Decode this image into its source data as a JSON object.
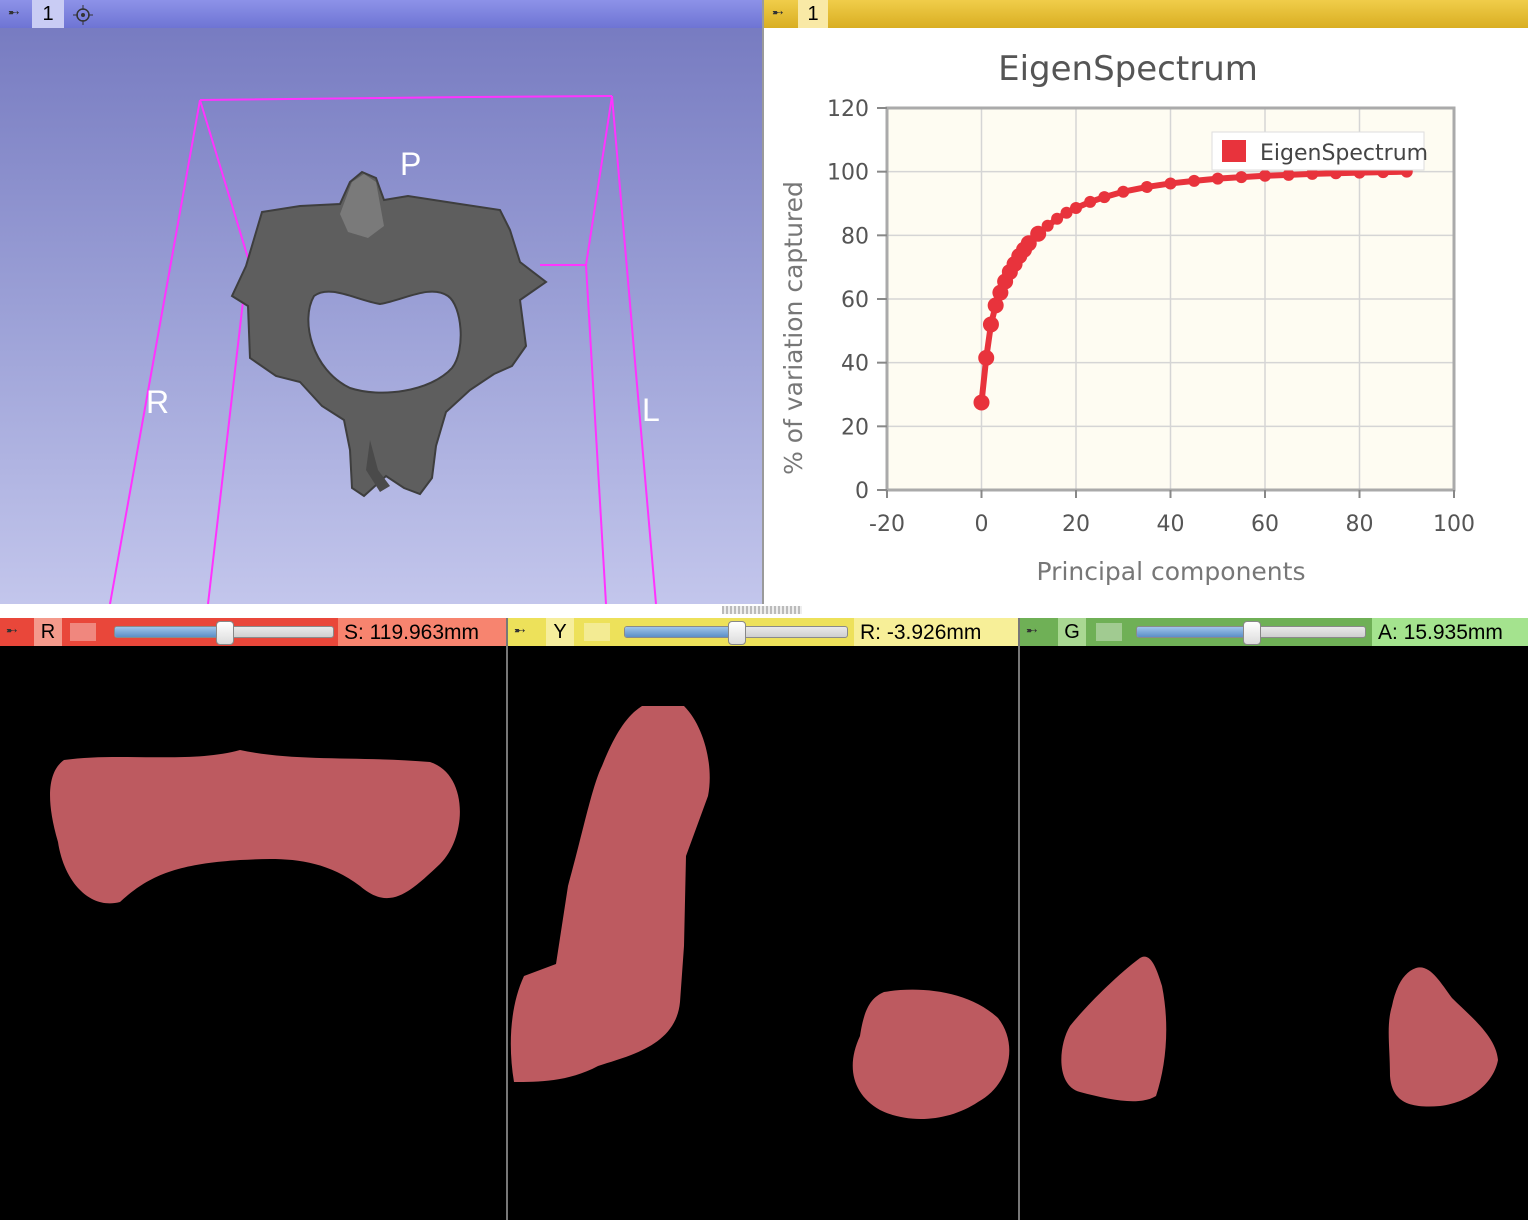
{
  "view3d": {
    "number": "1",
    "orientation_labels": {
      "posterior": "P",
      "right": "R",
      "left": "L"
    },
    "colors": {
      "bar": "#7a80dc",
      "box": "#ff33ff",
      "model": "#5a5a5a"
    },
    "icons": [
      "pin-icon",
      "crosshair-icon"
    ]
  },
  "chartview": {
    "number": "1",
    "colors": {
      "bar": "#e8c33c",
      "series": "#e8333c",
      "plot_bg": "#fefcf2"
    }
  },
  "chart_data": {
    "type": "line",
    "title": "EigenSpectrum",
    "xlabel": "Principal components",
    "ylabel": "% of variation captured",
    "xlim": [
      -20,
      100
    ],
    "ylim": [
      0,
      120
    ],
    "xticks": [
      "-20",
      "0",
      "20",
      "40",
      "60",
      "80",
      "100"
    ],
    "yticks": [
      "0",
      "20",
      "40",
      "60",
      "80",
      "100",
      "120"
    ],
    "grid": true,
    "legend_position": "top-right",
    "series": [
      {
        "name": "EigenSpectrum",
        "x": [
          0,
          1,
          2,
          3,
          4,
          5,
          6,
          7,
          8,
          9,
          10,
          12,
          14,
          16,
          18,
          20,
          23,
          26,
          30,
          35,
          40,
          45,
          50,
          55,
          60,
          65,
          70,
          75,
          80,
          85,
          90
        ],
        "y": [
          27.5,
          41.5,
          52,
          58,
          62,
          65.5,
          68.5,
          71,
          73.5,
          75.5,
          77.5,
          80.5,
          83,
          85.2,
          87.1,
          88.6,
          90.5,
          92,
          93.7,
          95.2,
          96.3,
          97.1,
          97.8,
          98.3,
          98.7,
          99,
          99.3,
          99.5,
          99.7,
          99.85,
          100
        ]
      }
    ]
  },
  "slices": [
    {
      "id": "red",
      "letter": "R",
      "offset": "S: 119.963mm",
      "slider_fraction": 0.5,
      "color": "#e9473a",
      "segment": "#bd5a60"
    },
    {
      "id": "yellow",
      "letter": "Y",
      "offset": "R: -3.926mm",
      "slider_fraction": 0.5,
      "color": "#ede15a",
      "segment": "#bd5a60"
    },
    {
      "id": "green",
      "letter": "G",
      "offset": "A: 15.935mm",
      "slider_fraction": 0.5,
      "color": "#6fb056",
      "segment": "#bd5a60"
    }
  ]
}
